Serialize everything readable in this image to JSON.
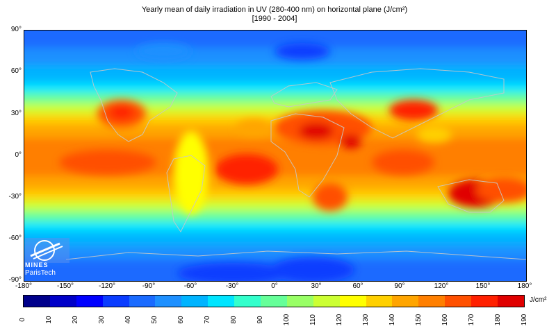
{
  "title": {
    "line1": "Yearly mean of daily irradiation in UV (280-400 nm) on horizontal plane (J/cm²)",
    "line2": "[1990 - 2004]"
  },
  "axes": {
    "lat_ticks": [
      "90°",
      "60°",
      "30°",
      "0°",
      "-30°",
      "-60°",
      "-90°"
    ],
    "lon_ticks": [
      "-180°",
      "-150°",
      "-120°",
      "-90°",
      "-60°",
      "-30°",
      "0°",
      "30°",
      "60°",
      "90°",
      "120°",
      "150°",
      "180°"
    ]
  },
  "colorbar": {
    "unit": "J/cm²",
    "ticks": [
      "0",
      "10",
      "20",
      "30",
      "40",
      "50",
      "60",
      "70",
      "80",
      "90",
      "100",
      "110",
      "120",
      "130",
      "140",
      "150",
      "160",
      "170",
      "180",
      "190"
    ],
    "colors": [
      "#00008b",
      "#0000c8",
      "#0000ff",
      "#0a3cff",
      "#1a6bff",
      "#1e90ff",
      "#00b4ff",
      "#00e5ff",
      "#33ffcc",
      "#66ff99",
      "#99ff66",
      "#ccff33",
      "#ffff00",
      "#ffd000",
      "#ffa500",
      "#ff7f00",
      "#ff5000",
      "#ff2000",
      "#e00000"
    ]
  },
  "logo": {
    "line1": "MINES",
    "line2": "ParisTech"
  }
}
